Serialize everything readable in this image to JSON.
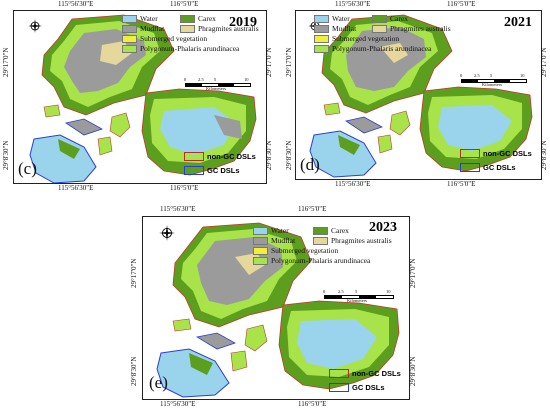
{
  "colors": {
    "water": "#9ad3ec",
    "mudflat": "#9b9b9b",
    "carex": "#5c9e1e",
    "phragmites": "#e6d89a",
    "submerged": "#f2ee3a",
    "polygonum": "#a8e34a",
    "non_gc_border": "#b03030",
    "gc_border": "#2a3fd0"
  },
  "legend": {
    "water": "Water",
    "mudflat": "Mudflat",
    "carex": "Carex",
    "phragmites": "Phragmites australis",
    "submerged": "Submerged vegetation",
    "polygonum": "Polygonum-Phalaris arundinacea"
  },
  "dsl": {
    "non_gc": "non-GC DSLs",
    "gc": "GC DSLs"
  },
  "scale": {
    "ticks": [
      "0",
      "2.5",
      "5",
      "10"
    ],
    "unit": "Kilometers"
  },
  "axes": {
    "x1": "115°56'30\"E",
    "x2": "116°5'0\"E",
    "y1": "29°17'0\"N",
    "y2": "29°8'30\"N"
  },
  "panels": [
    {
      "year": "2019",
      "label": "(c)"
    },
    {
      "year": "2021",
      "label": "(d)"
    },
    {
      "year": "2023",
      "label": "(e)"
    }
  ]
}
